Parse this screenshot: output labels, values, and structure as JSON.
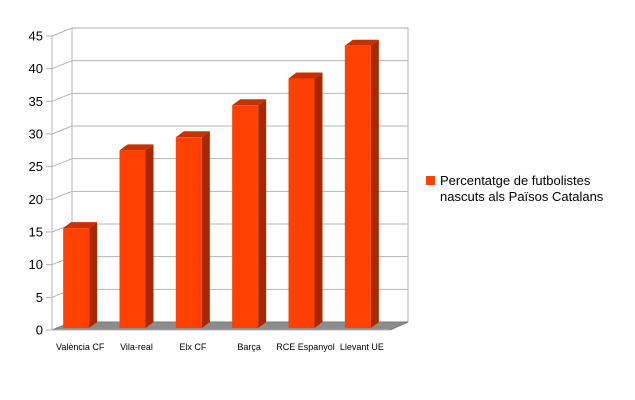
{
  "chart_data": {
    "type": "bar",
    "categories": [
      "València CF",
      "Vila-real",
      "Elx CF",
      "Barça",
      "RCE Espanyol",
      "Llevant UE"
    ],
    "series": [
      {
        "name": "Percentatge de futbolistes nascuts als Països Catalans",
        "legend_lines": [
          "Percentatge de futbolistes",
          "nascuts als Països Catalans"
        ],
        "values": [
          15.6,
          27.5,
          29.5,
          34.4,
          38.5,
          43.5
        ],
        "color": "#ff4000"
      }
    ],
    "ylim": [
      0,
      45
    ],
    "yticks": [
      "0",
      "5",
      "10",
      "15",
      "20",
      "25",
      "30",
      "35",
      "40",
      "45"
    ],
    "grid": true,
    "legend": "right",
    "style": "3d-bar"
  }
}
